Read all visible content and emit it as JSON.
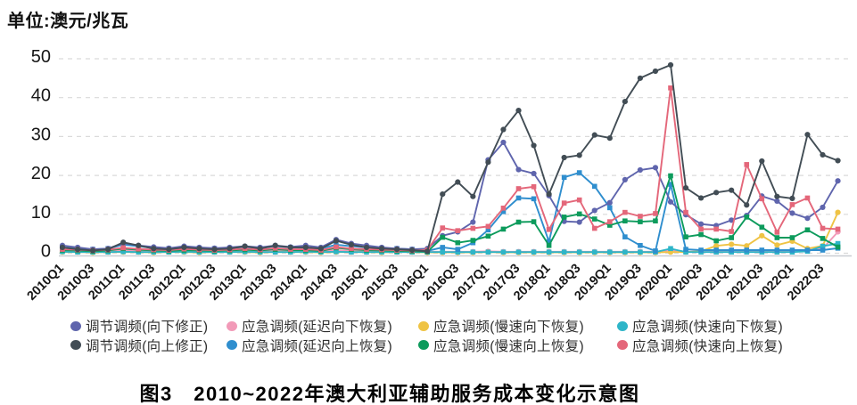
{
  "unit_label": "单位:澳元/兆瓦",
  "caption": "图3　2010~2022年澳大利亚辅助服务成本变化示意图",
  "chart_data": {
    "type": "line",
    "categories": [
      "2010Q1",
      "2010Q2",
      "2010Q3",
      "2010Q4",
      "2011Q1",
      "2011Q2",
      "2011Q3",
      "2011Q4",
      "2012Q1",
      "2012Q2",
      "2012Q3",
      "2012Q4",
      "2013Q1",
      "2013Q2",
      "2013Q3",
      "2013Q4",
      "2014Q1",
      "2014Q2",
      "2014Q3",
      "2014Q4",
      "2015Q1",
      "2015Q2",
      "2015Q3",
      "2015Q4",
      "2016Q1",
      "2016Q2",
      "2016Q3",
      "2016Q4",
      "2017Q1",
      "2017Q2",
      "2017Q3",
      "2017Q4",
      "2018Q1",
      "2018Q2",
      "2018Q3",
      "2018Q4",
      "2019Q1",
      "2019Q2",
      "2019Q3",
      "2019Q4",
      "2020Q1",
      "2020Q2",
      "2020Q3",
      "2020Q4",
      "2021Q1",
      "2021Q2",
      "2021Q3",
      "2021Q4",
      "2022Q1",
      "2022Q2",
      "2022Q3",
      "2022Q4"
    ],
    "x_tick_every": 2,
    "ylim": [
      0,
      50
    ],
    "yticks": [
      0,
      10,
      20,
      30,
      40,
      50
    ],
    "grid": "horizontal-dashed",
    "legend_position": "bottom",
    "z_order": [
      1,
      2,
      3,
      5,
      0,
      6,
      7,
      4
    ],
    "series": [
      {
        "name": "调节调频(向下修正)",
        "color": "#5f65ad",
        "marker": "circle",
        "values": [
          2.0,
          1.5,
          1.0,
          1.2,
          2.6,
          2.0,
          1.6,
          1.3,
          1.8,
          1.5,
          1.3,
          1.5,
          1.8,
          1.5,
          2.0,
          1.6,
          2.0,
          1.5,
          3.5,
          2.5,
          2.0,
          1.5,
          1.2,
          1.0,
          1.2,
          4.5,
          5.5,
          8.0,
          24.0,
          28.5,
          21.5,
          20.5,
          14.8,
          8.2,
          8.0,
          11.0,
          13.0,
          18.9,
          21.4,
          22.0,
          13.2,
          9.9,
          7.5,
          7.1,
          8.5,
          9.7,
          14.7,
          13.4,
          10.3,
          9.0,
          11.8,
          18.6
        ]
      },
      {
        "name": "应急调频(延迟向下恢复)",
        "color": "#f29ab8",
        "marker": "circle",
        "values": [
          0.6,
          0.6,
          0.5,
          0.6,
          0.8,
          0.6,
          0.5,
          0.6,
          0.6,
          0.5,
          0.6,
          0.6,
          0.6,
          0.5,
          0.6,
          0.6,
          0.6,
          0.5,
          0.8,
          0.6,
          0.6,
          0.5,
          0.6,
          0.5,
          0.4,
          0.4,
          0.4,
          0.4,
          0.5,
          0.4,
          0.4,
          0.4,
          0.4,
          0.4,
          0.4,
          0.4,
          0.4,
          0.4,
          0.4,
          0.4,
          0.8,
          0.4,
          0.4,
          0.4,
          0.4,
          0.4,
          0.5,
          0.4,
          0.6,
          0.8,
          1.2,
          5.5
        ]
      },
      {
        "name": "应急调频(慢速向下恢复)",
        "color": "#efc344",
        "marker": "circle",
        "values": [
          0.3,
          0.3,
          0.2,
          0.3,
          0.3,
          0.3,
          0.2,
          0.3,
          0.3,
          0.2,
          0.3,
          0.3,
          0.3,
          0.2,
          0.3,
          0.3,
          0.3,
          0.2,
          0.3,
          0.3,
          0.3,
          0.2,
          0.3,
          0.3,
          0.2,
          0.2,
          0.2,
          0.2,
          0.3,
          0.2,
          0.2,
          0.2,
          0.2,
          0.2,
          0.2,
          0.2,
          0.2,
          0.2,
          0.2,
          0.2,
          0.3,
          0.3,
          0.5,
          1.9,
          2.3,
          1.9,
          4.5,
          2.1,
          3.1,
          1.2,
          1.9,
          10.5
        ]
      },
      {
        "name": "应急调频(快速向下恢复)",
        "color": "#2eb5c8",
        "marker": "square",
        "values": [
          0.4,
          0.3,
          0.3,
          0.3,
          0.4,
          0.3,
          0.3,
          0.3,
          0.4,
          0.3,
          0.3,
          0.3,
          0.4,
          0.3,
          0.3,
          0.3,
          0.4,
          0.3,
          0.4,
          0.3,
          0.3,
          0.3,
          0.3,
          0.3,
          0.3,
          0.3,
          0.3,
          0.3,
          0.3,
          0.3,
          0.3,
          0.3,
          0.3,
          0.3,
          0.3,
          0.3,
          0.3,
          0.3,
          0.3,
          0.3,
          1.2,
          0.3,
          0.3,
          0.3,
          0.3,
          0.3,
          0.3,
          0.3,
          0.3,
          0.5,
          1.8,
          2.5
        ]
      },
      {
        "name": "调节调频(向上修正)",
        "color": "#424d55",
        "marker": "circle",
        "values": [
          1.5,
          1.0,
          0.7,
          1.0,
          2.8,
          2.0,
          1.2,
          1.0,
          1.5,
          1.2,
          1.0,
          1.2,
          1.8,
          1.2,
          2.0,
          1.5,
          1.5,
          1.2,
          3.2,
          2.2,
          1.5,
          1.2,
          1.0,
          0.8,
          0.5,
          15.2,
          18.3,
          14.6,
          23.4,
          31.8,
          36.7,
          27.7,
          15.2,
          24.6,
          25.2,
          30.4,
          29.6,
          39.0,
          45.0,
          46.8,
          48.4,
          16.8,
          14.2,
          15.6,
          16.2,
          12.4,
          23.7,
          14.6,
          14.1,
          30.5,
          25.3,
          23.8
        ]
      },
      {
        "name": "应急调频(延迟向上恢复)",
        "color": "#2f8ece",
        "marker": "square",
        "values": [
          1.5,
          1.2,
          1.0,
          1.2,
          2.2,
          1.8,
          1.3,
          1.2,
          1.5,
          1.3,
          1.2,
          1.3,
          1.6,
          1.3,
          1.8,
          1.5,
          1.4,
          1.2,
          2.2,
          1.8,
          1.5,
          1.3,
          1.2,
          1.0,
          0.6,
          1.5,
          1.0,
          2.7,
          6.0,
          10.7,
          14.2,
          14.0,
          3.0,
          19.5,
          20.7,
          17.2,
          11.7,
          4.2,
          2.0,
          0.6,
          17.7,
          1.0,
          0.8,
          0.8,
          0.8,
          0.8,
          0.8,
          0.8,
          0.8,
          0.8,
          0.8,
          1.3
        ]
      },
      {
        "name": "应急调频(慢速向上恢复)",
        "color": "#0d9b5c",
        "marker": "square",
        "values": [
          0.8,
          0.7,
          0.5,
          0.7,
          1.2,
          0.9,
          0.7,
          0.6,
          0.8,
          0.7,
          0.6,
          0.7,
          0.9,
          0.7,
          1.0,
          0.8,
          0.8,
          0.6,
          1.4,
          1.0,
          0.8,
          0.7,
          0.6,
          0.5,
          0.4,
          4.1,
          2.7,
          3.3,
          4.4,
          6.2,
          8.0,
          8.1,
          2.0,
          9.3,
          10.1,
          8.8,
          7.2,
          8.3,
          8.1,
          8.3,
          19.9,
          4.2,
          4.8,
          3.2,
          4.0,
          9.3,
          6.7,
          4.0,
          4.0,
          6.0,
          3.8,
          1.6
        ]
      },
      {
        "name": "应急调频(快速向上恢复)",
        "color": "#e4677a",
        "marker": "square",
        "values": [
          1.0,
          0.9,
          0.7,
          0.9,
          1.4,
          1.1,
          0.9,
          0.8,
          1.1,
          0.9,
          0.8,
          0.9,
          1.2,
          0.9,
          1.3,
          1.0,
          1.0,
          0.8,
          1.6,
          1.2,
          1.0,
          0.9,
          0.8,
          0.7,
          0.8,
          6.5,
          5.8,
          6.4,
          6.9,
          11.6,
          16.6,
          17.1,
          6.1,
          12.9,
          13.7,
          6.4,
          8.1,
          10.5,
          9.5,
          10.2,
          42.5,
          10.5,
          6.2,
          6.2,
          5.6,
          22.8,
          14.0,
          5.4,
          12.5,
          14.2,
          6.4,
          6.2
        ]
      }
    ]
  }
}
